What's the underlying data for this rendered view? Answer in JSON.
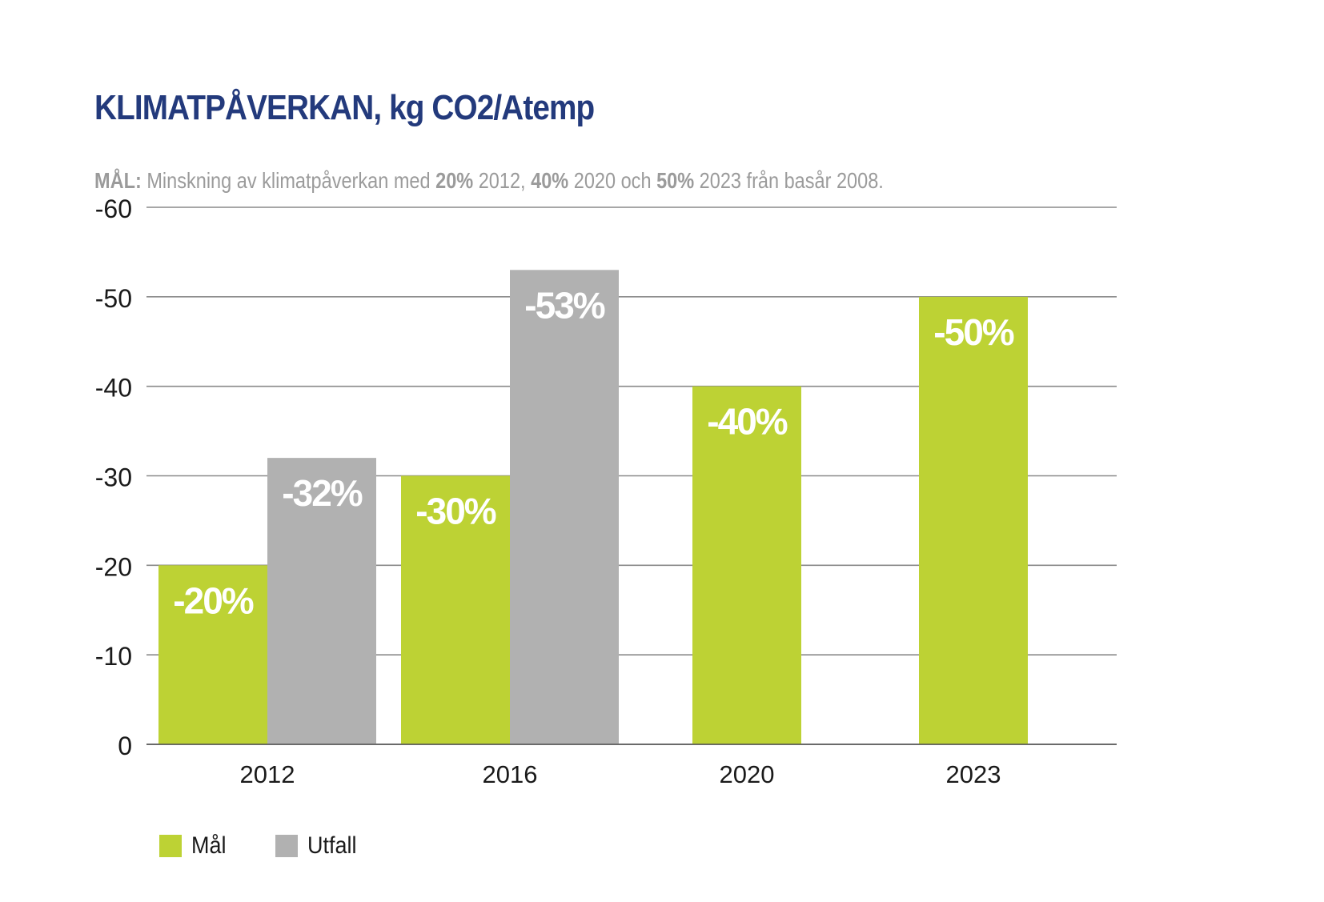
{
  "chart_data": {
    "type": "bar",
    "title": "KLIMATPÅVERKAN, kg CO2/Atemp",
    "subtitle": {
      "label": "MÅL:",
      "parts": [
        {
          "text": " Minskning av klimatpåverkan med ",
          "bold": false
        },
        {
          "text": "20%",
          "bold": true
        },
        {
          "text": " 2012, ",
          "bold": false
        },
        {
          "text": "40%",
          "bold": true
        },
        {
          "text": " 2020 och ",
          "bold": false
        },
        {
          "text": "50%",
          "bold": true
        },
        {
          "text": " 2023 från basår 2008.",
          "bold": false
        }
      ]
    },
    "categories": [
      "2012",
      "2016",
      "2020",
      "2023"
    ],
    "series": [
      {
        "name": "Mål",
        "color": "#bdd234",
        "values": [
          -20,
          -30,
          -40,
          -50
        ],
        "labels": [
          "-20%",
          "-30%",
          "-40%",
          "-50%"
        ]
      },
      {
        "name": "Utfall",
        "color": "#b1b1b1",
        "values": [
          -32,
          -53,
          null,
          null
        ],
        "labels": [
          "-32%",
          "-53%",
          null,
          null
        ]
      }
    ],
    "xlabel": "",
    "ylabel": "",
    "ylim": [
      0,
      -60
    ],
    "yticks": [
      "0",
      "-10",
      "-20",
      "-30",
      "-40",
      "-50",
      "-60"
    ],
    "ytick_values": [
      0,
      -10,
      -20,
      -30,
      -40,
      -50,
      -60
    ],
    "grid": true,
    "legend": "bottom-left"
  }
}
